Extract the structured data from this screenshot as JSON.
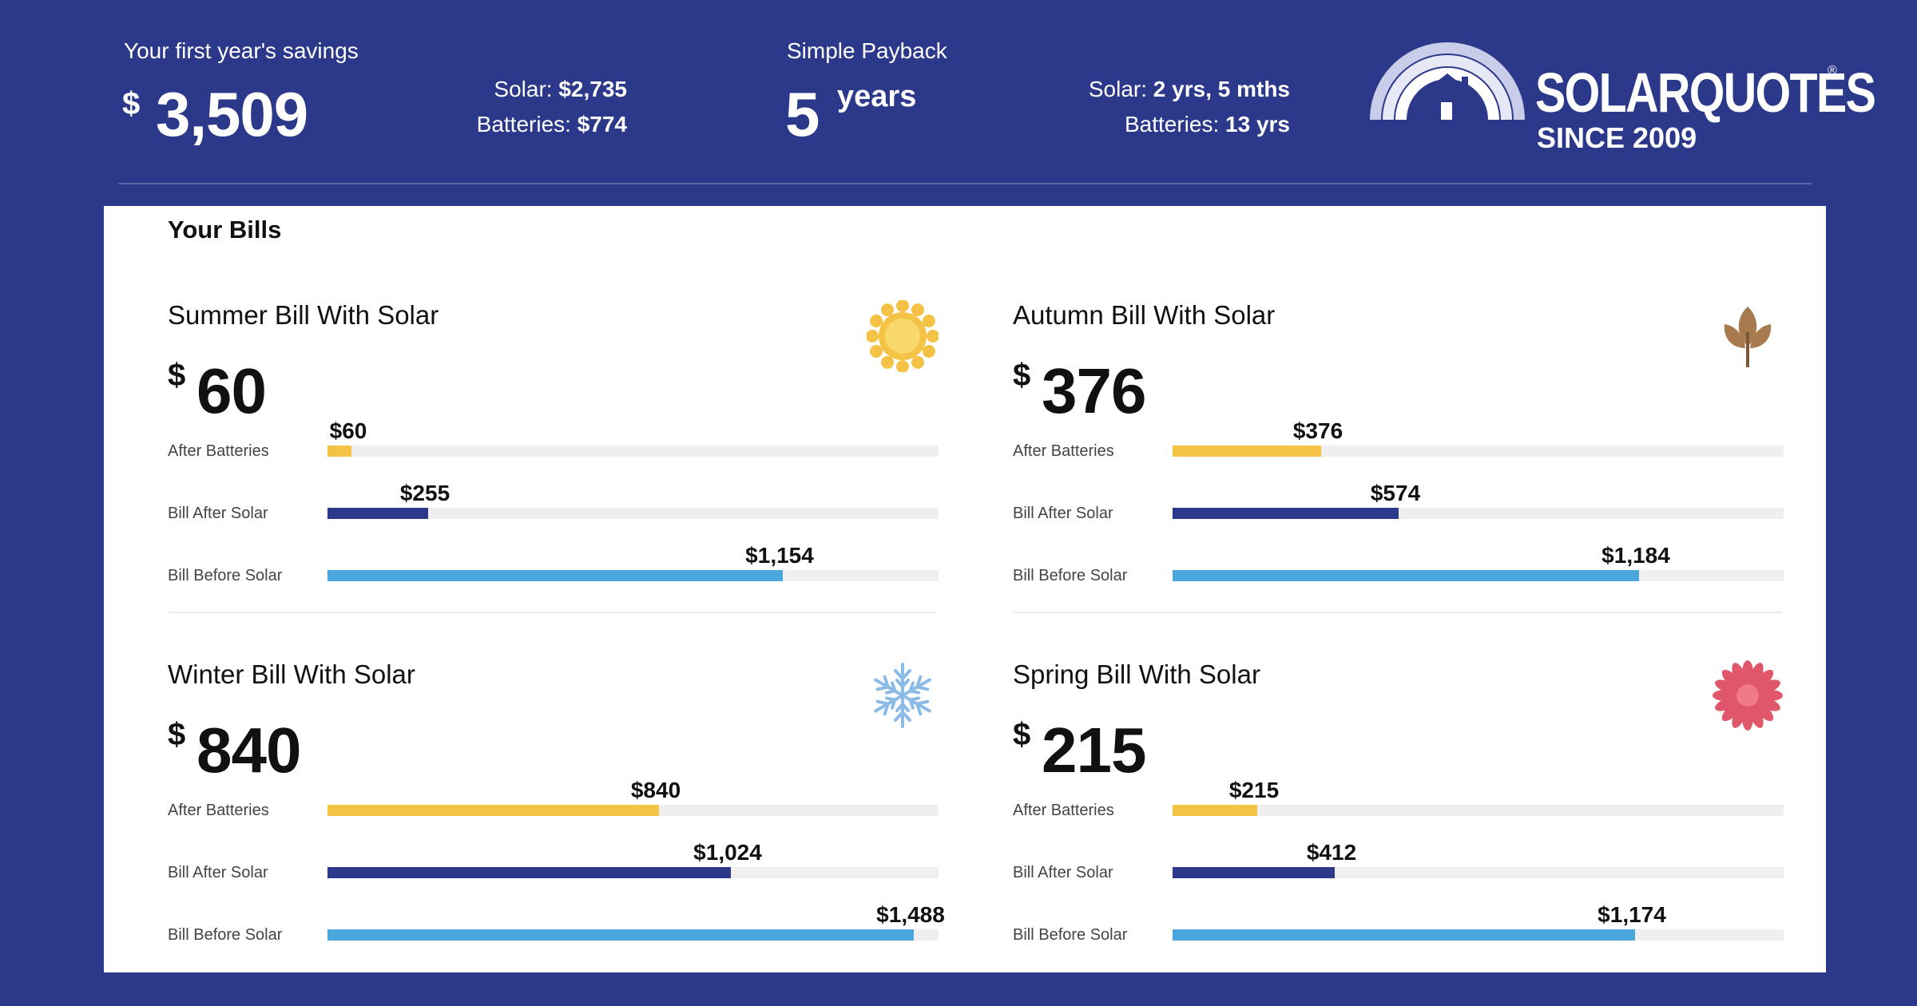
{
  "header": {
    "savings_label": "Your first year's savings",
    "savings_currency": "$",
    "savings_amount": "3,509",
    "savings_solar_label": "Solar:",
    "savings_solar_value": "$2,735",
    "savings_batteries_label": "Batteries:",
    "savings_batteries_value": "$774",
    "payback_label": "Simple Payback",
    "payback_number": "5",
    "payback_unit": "years",
    "payback_solar_label": "Solar:",
    "payback_solar_value": "2 yrs, 5 mths",
    "payback_batteries_label": "Batteries:",
    "payback_batteries_value": "13 yrs"
  },
  "logo": {
    "name": "SOLARQUOTES",
    "since": "SINCE 2009",
    "reg": "®"
  },
  "bills": {
    "title": "Your Bills",
    "max_value": 1550,
    "colors": {
      "after_batteries": "#f4c244",
      "after_solar": "#2c398a",
      "before_solar": "#4aa6dd"
    },
    "labels": {
      "after_batteries": "After Batteries",
      "after_solar": "Bill After Solar",
      "before_solar": "Bill Before Solar"
    },
    "seasons": [
      {
        "title": "Summer Bill With Solar",
        "currency": "$",
        "amount": "60",
        "icon": "sun-icon",
        "after_batteries": {
          "label": "$60",
          "value": 60
        },
        "after_solar": {
          "label": "$255",
          "value": 255
        },
        "before_solar": {
          "label": "$1,154",
          "value": 1154
        }
      },
      {
        "title": "Autumn Bill With Solar",
        "currency": "$",
        "amount": "376",
        "icon": "leaf-icon",
        "after_batteries": {
          "label": "$376",
          "value": 376
        },
        "after_solar": {
          "label": "$574",
          "value": 574
        },
        "before_solar": {
          "label": "$1,184",
          "value": 1184
        }
      },
      {
        "title": "Winter Bill With Solar",
        "currency": "$",
        "amount": "840",
        "icon": "snowflake-icon",
        "after_batteries": {
          "label": "$840",
          "value": 840
        },
        "after_solar": {
          "label": "$1,024",
          "value": 1024
        },
        "before_solar": {
          "label": "$1,488",
          "value": 1488
        }
      },
      {
        "title": "Spring Bill With Solar",
        "currency": "$",
        "amount": "215",
        "icon": "flower-icon",
        "after_batteries": {
          "label": "$215",
          "value": 215
        },
        "after_solar": {
          "label": "$412",
          "value": 412
        },
        "before_solar": {
          "label": "$1,174",
          "value": 1174
        }
      }
    ]
  }
}
